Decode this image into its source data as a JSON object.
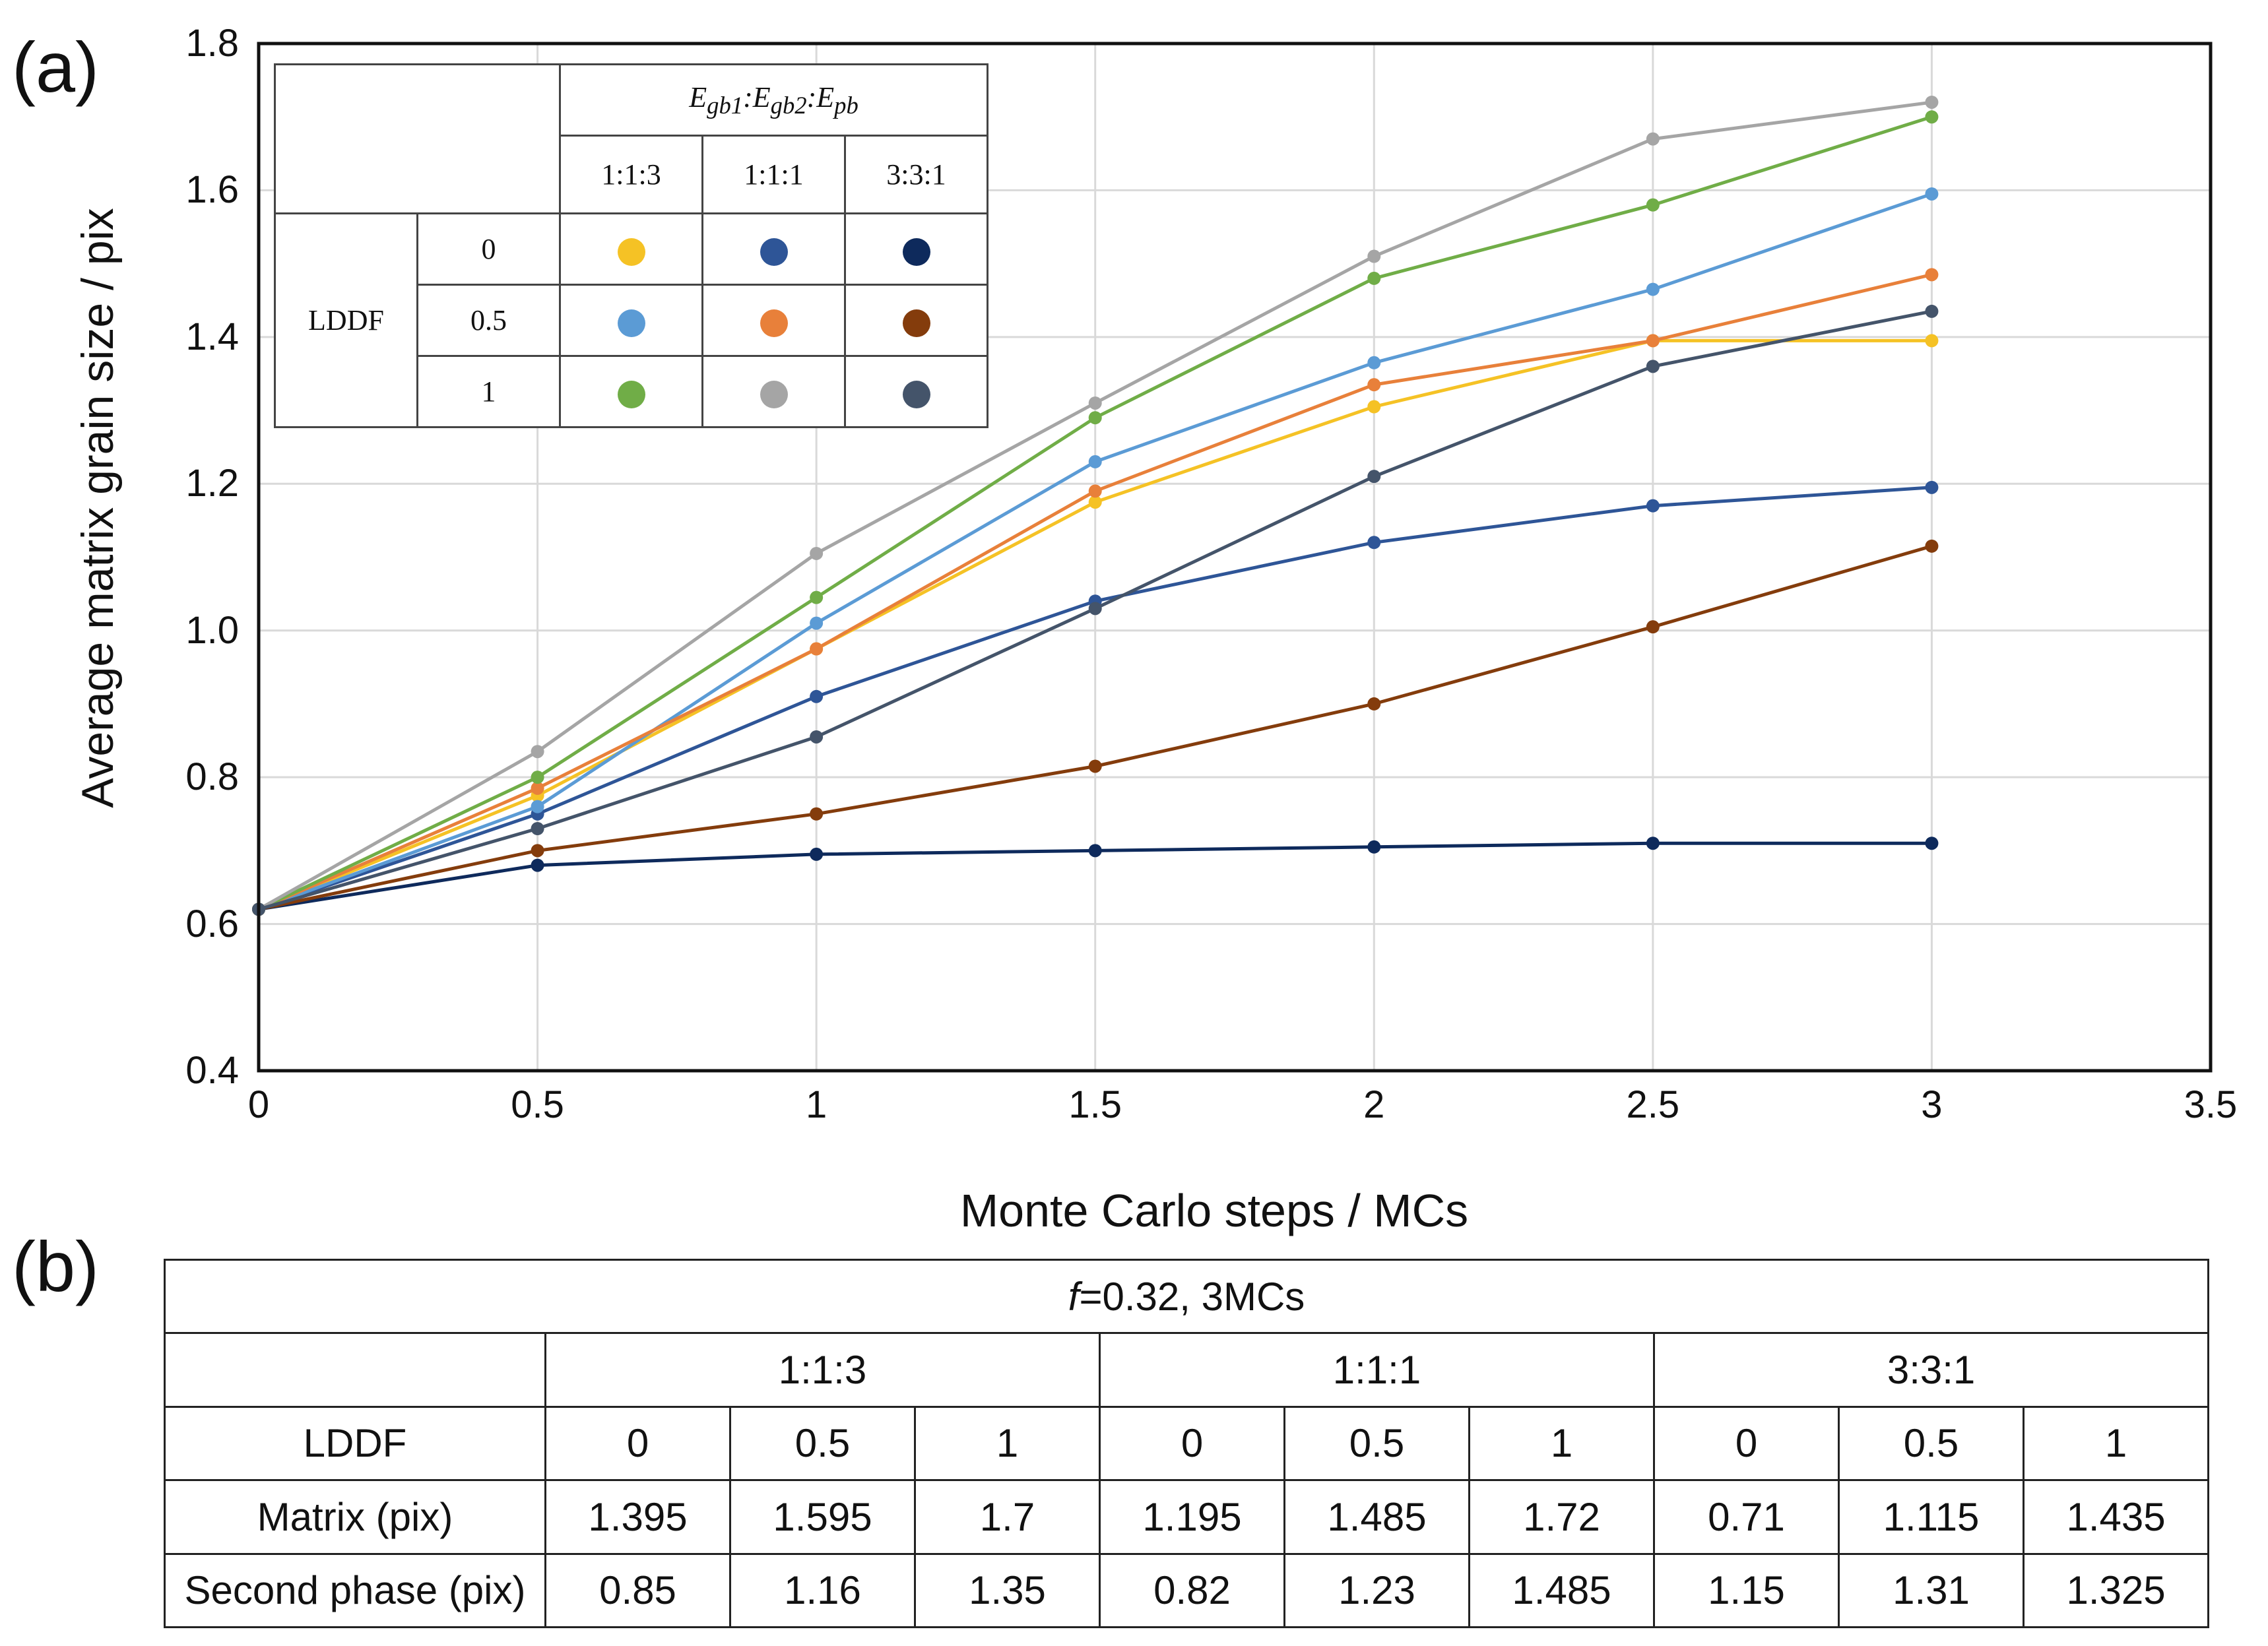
{
  "panel_a_label": "(a)",
  "panel_b_label": "(b)",
  "chart_data": {
    "type": "line",
    "xlabel": "Monte Carlo steps / MCs",
    "ylabel": "Average matrix grain size / pix",
    "xlim": [
      0,
      3.5
    ],
    "ylim": [
      0.4,
      1.8
    ],
    "xticks": [
      0,
      0.5,
      1,
      1.5,
      2,
      2.5,
      3,
      3.5
    ],
    "xtick_labels": [
      "0",
      "0.5",
      "1",
      "1.5",
      "2",
      "2.5",
      "3",
      "3.5"
    ],
    "yticks": [
      0.4,
      0.6,
      0.8,
      1.0,
      1.2,
      1.4,
      1.6,
      1.8
    ],
    "ytick_labels": [
      "0.4",
      "0.6",
      "0.8",
      "1.0",
      "1.2",
      "1.4",
      "1.6",
      "1.8"
    ],
    "grid": true,
    "x": [
      0,
      0.5,
      1,
      1.5,
      2,
      2.5,
      3
    ],
    "series": [
      {
        "name": "1:1:3, LDDF 0",
        "color": "#F5C225",
        "values": [
          0.62,
          0.775,
          0.975,
          1.175,
          1.305,
          1.395,
          1.395
        ]
      },
      {
        "name": "1:1:1, LDDF 0",
        "color": "#2E5597",
        "values": [
          0.62,
          0.75,
          0.91,
          1.04,
          1.12,
          1.17,
          1.195
        ]
      },
      {
        "name": "3:3:1, LDDF 0",
        "color": "#0E2A5C",
        "values": [
          0.62,
          0.68,
          0.695,
          0.7,
          0.705,
          0.71,
          0.71
        ]
      },
      {
        "name": "1:1:3, LDDF 0.5",
        "color": "#5B9BD5",
        "values": [
          0.62,
          0.76,
          1.01,
          1.23,
          1.365,
          1.465,
          1.595
        ]
      },
      {
        "name": "1:1:1, LDDF 0.5",
        "color": "#E8803A",
        "values": [
          0.62,
          0.785,
          0.975,
          1.19,
          1.335,
          1.395,
          1.485
        ]
      },
      {
        "name": "3:3:1, LDDF 0.5",
        "color": "#843C0C",
        "values": [
          0.62,
          0.7,
          0.75,
          0.815,
          0.9,
          1.005,
          1.115
        ]
      },
      {
        "name": "1:1:3, LDDF 1",
        "color": "#70AD47",
        "values": [
          0.62,
          0.8,
          1.045,
          1.29,
          1.48,
          1.58,
          1.7
        ]
      },
      {
        "name": "1:1:1, LDDF 1",
        "color": "#A5A5A5",
        "values": [
          0.62,
          0.835,
          1.105,
          1.31,
          1.51,
          1.67,
          1.72
        ]
      },
      {
        "name": "3:3:1, LDDF 1",
        "color": "#44546A",
        "values": [
          0.62,
          0.73,
          0.855,
          1.03,
          1.21,
          1.36,
          1.435
        ]
      }
    ],
    "legend": {
      "placement": "top-left",
      "ratio_header": "E_gb1:E_gb2:E_pb",
      "ratio_parts": [
        "E",
        "gb1",
        ":E",
        "gb2",
        ":E",
        "pb"
      ],
      "ratios": [
        "1:1:3",
        "1:1:1",
        "3:3:1"
      ],
      "row_header": "LDDF",
      "lddf_values": [
        "0",
        "0.5",
        "1"
      ]
    }
  },
  "table_b": {
    "title_prefix": "f",
    "title_rest": "=0.32, 3MCs",
    "ratios": [
      "1:1:3",
      "1:1:1",
      "3:3:1"
    ],
    "lddf_label": "LDDF",
    "lddf_values": [
      "0",
      "0.5",
      "1",
      "0",
      "0.5",
      "1",
      "0",
      "0.5",
      "1"
    ],
    "matrix_label": "Matrix (pix)",
    "matrix_values": [
      "1.395",
      "1.595",
      "1.7",
      "1.195",
      "1.485",
      "1.72",
      "0.71",
      "1.115",
      "1.435"
    ],
    "second_label": "Second phase (pix)",
    "second_values": [
      "0.85",
      "1.16",
      "1.35",
      "0.82",
      "1.23",
      "1.485",
      "1.15",
      "1.31",
      "1.325"
    ]
  }
}
